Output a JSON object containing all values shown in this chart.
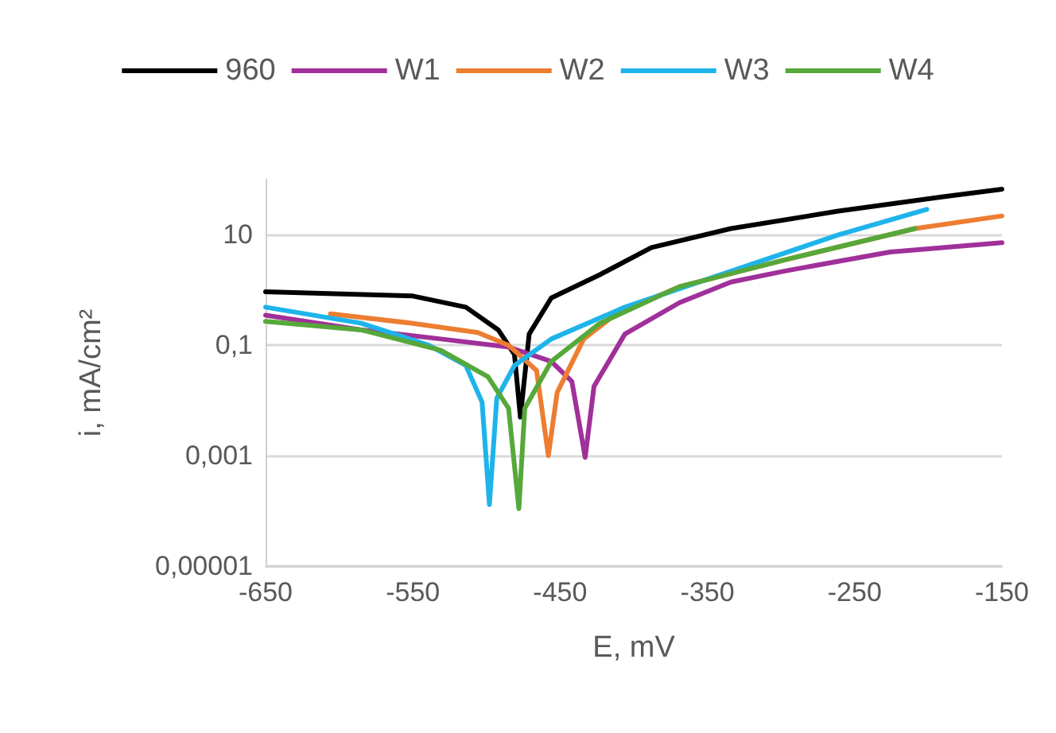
{
  "chart_data": {
    "type": "line",
    "xlabel": "E, mV",
    "ylabel": "i, mA/cm²",
    "log": "y",
    "grid": "y",
    "legend": "top",
    "marker": "none",
    "line_style": "solid",
    "xlim": [
      -650,
      -150
    ],
    "xticks": [
      -650,
      -550,
      -450,
      -350,
      -250,
      -150
    ],
    "ylim": [
      1e-05,
      100
    ],
    "yticks": [
      {
        "value": 1e-05,
        "label": "0,00001"
      },
      {
        "value": 0.001,
        "label": "0,001"
      },
      {
        "value": 0.1,
        "label": "0,1"
      },
      {
        "value": 10,
        "label": "10"
      }
    ],
    "series": [
      {
        "name": "960",
        "color": "#000000",
        "x": [
          -650,
          -550,
          -514,
          -492,
          -481,
          -477,
          -471,
          -456,
          -423,
          -388,
          -334,
          -261,
          -190,
          -150
        ],
        "values": [
          0.93,
          0.78,
          0.49,
          0.19,
          0.068,
          0.005,
          0.16,
          0.72,
          1.9,
          5.9,
          13,
          27,
          49,
          67
        ]
      },
      {
        "name": "W1",
        "color": "#a0309a",
        "x": [
          -650,
          -585,
          -531,
          -485,
          -456,
          -442,
          -433,
          -427,
          -406,
          -369,
          -334,
          -298,
          -226,
          -150
        ],
        "values": [
          0.35,
          0.19,
          0.13,
          0.093,
          0.051,
          0.022,
          0.00093,
          0.018,
          0.16,
          0.59,
          1.4,
          2.2,
          4.9,
          7.2
        ]
      },
      {
        "name": "W2",
        "color": "#ed7d31",
        "x": [
          -606,
          -550,
          -506,
          -485,
          -466,
          -458,
          -452,
          -434,
          -412,
          -369,
          -298,
          -209,
          -150
        ],
        "values": [
          0.37,
          0.25,
          0.17,
          0.1,
          0.035,
          0.001,
          0.014,
          0.13,
          0.37,
          1.15,
          3.5,
          13,
          22
        ]
      },
      {
        "name": "W3",
        "color": "#1eb4ea",
        "x": [
          -650,
          -585,
          -539,
          -514,
          -503,
          -498,
          -493,
          -481,
          -456,
          -406,
          -334,
          -261,
          -201
        ],
        "values": [
          0.49,
          0.25,
          0.1,
          0.043,
          0.0093,
          0.00013,
          0.011,
          0.043,
          0.13,
          0.49,
          2.2,
          10,
          29
        ]
      },
      {
        "name": "W4",
        "color": "#56a83a",
        "x": [
          -650,
          -585,
          -531,
          -499,
          -485,
          -478,
          -474,
          -456,
          -423,
          -369,
          -298,
          -209
        ],
        "values": [
          0.27,
          0.19,
          0.081,
          0.027,
          0.0072,
          0.00011,
          0.0072,
          0.051,
          0.25,
          1.15,
          3.5,
          13
        ]
      }
    ]
  }
}
